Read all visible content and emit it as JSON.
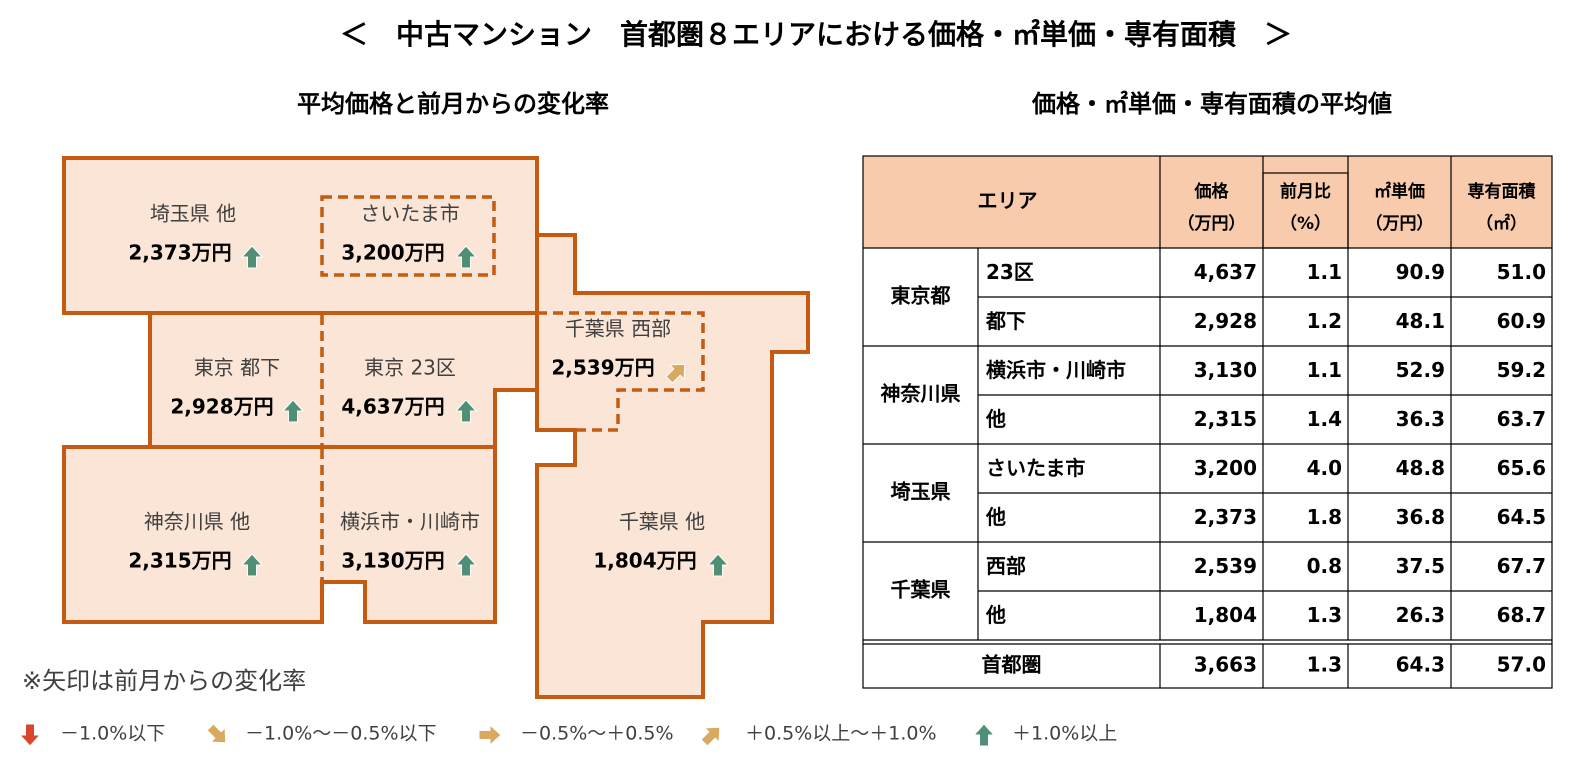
{
  "title": "＜　中古マンション　首都圏８エリアにおける価格・㎡単価・専有面積　＞",
  "map": {
    "title": "平均価格と前月からの変化率",
    "areas": [
      {
        "label": "埼玉県 他",
        "price": "2,373万円"
      },
      {
        "label": "さいたま市",
        "price": "3,200万円"
      },
      {
        "label": "東京 都下",
        "price": "2,928万円"
      },
      {
        "label": "東京 23区",
        "price": "4,637万円"
      },
      {
        "label": "千葉県 西部",
        "price": "2,539万円"
      },
      {
        "label": "神奈川県 他",
        "price": "2,315万円"
      },
      {
        "label": "横浜市・川崎市",
        "price": "3,130万円"
      },
      {
        "label": "千葉県 他",
        "price": "1,804万円"
      }
    ],
    "note": "※矢印は前月からの変化率",
    "legend": [
      "－1.0%以下",
      "－1.0%～－0.5%以下",
      "－0.5%～＋0.5%",
      "＋0.5%以上～＋1.0%",
      "＋1.0%以上"
    ]
  },
  "table": {
    "title": "価格・㎡単価・専有面積の平均値",
    "header": [
      {
        "label": "エリア"
      },
      {
        "label": "価格",
        "unit": "（万円）"
      },
      {
        "label": "前月比",
        "unit": "（%）"
      },
      {
        "label": "㎡単価",
        "unit": "（万円）"
      },
      {
        "label": "専有面積",
        "unit": "（㎡）"
      }
    ],
    "groups": [
      {
        "name": "東京都",
        "rows": [
          {
            "area": "23区",
            "cells": [
              "4,637",
              "1.1",
              "90.9",
              "51.0"
            ]
          },
          {
            "area": "都下",
            "cells": [
              "2,928",
              "1.2",
              "48.1",
              "60.9"
            ]
          }
        ]
      },
      {
        "name": "神奈川県",
        "rows": [
          {
            "area": "横浜市・川崎市",
            "cells": [
              "3,130",
              "1.1",
              "52.9",
              "59.2"
            ]
          },
          {
            "area": "他",
            "cells": [
              "2,315",
              "1.4",
              "36.3",
              "63.7"
            ]
          }
        ]
      },
      {
        "name": "埼玉県",
        "rows": [
          {
            "area": "さいたま市",
            "cells": [
              "3,200",
              "4.0",
              "48.8",
              "65.6"
            ]
          },
          {
            "area": "他",
            "cells": [
              "2,373",
              "1.8",
              "36.8",
              "64.5"
            ]
          }
        ]
      },
      {
        "name": "千葉県",
        "rows": [
          {
            "area": "西部",
            "cells": [
              "2,539",
              "0.8",
              "37.5",
              "67.7"
            ]
          },
          {
            "area": "他",
            "cells": [
              "1,804",
              "1.3",
              "26.3",
              "68.7"
            ]
          }
        ]
      }
    ],
    "total": {
      "name": "首都圏",
      "cells": [
        "3,663",
        "1.3",
        "64.3",
        "57.0"
      ]
    }
  }
}
